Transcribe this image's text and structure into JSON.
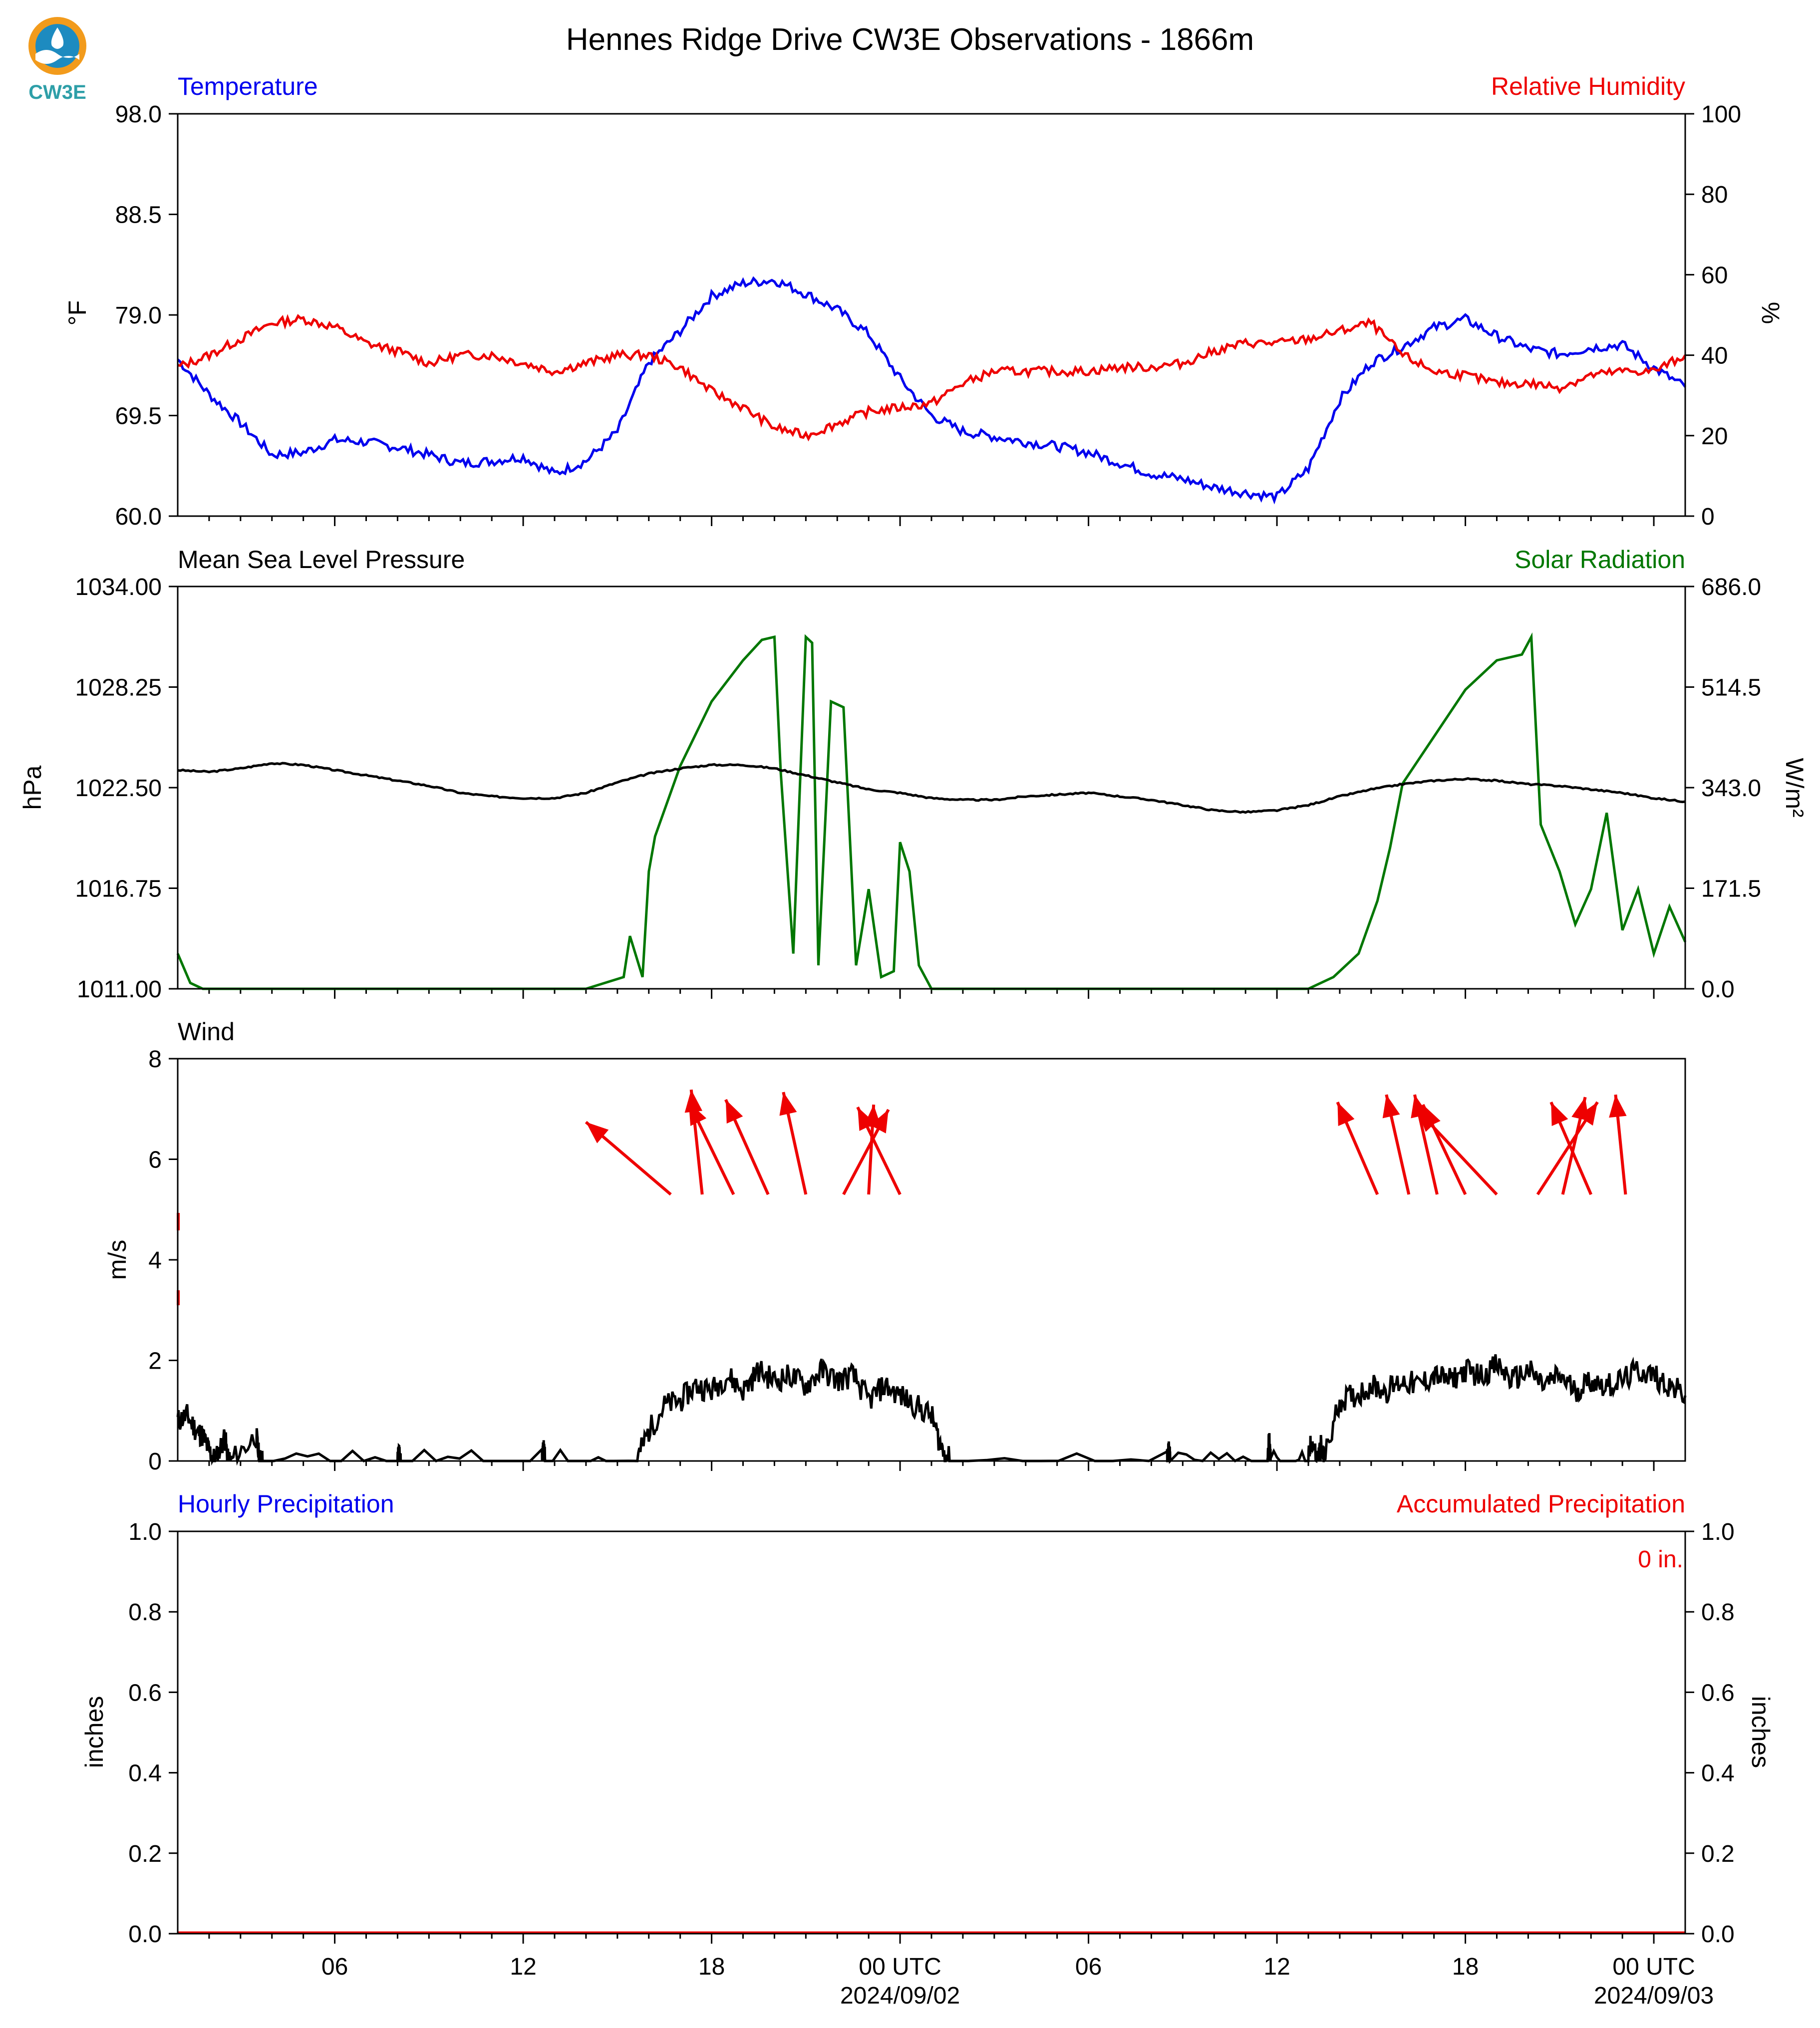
{
  "title": "Hennes Ridge Drive CW3E Observations - 1866m",
  "logo": {
    "text": "CW3E",
    "colors": [
      "#f29b1c",
      "#1d8bc0",
      "#2e9fa8"
    ]
  },
  "x_axis": {
    "hours_range": [
      0,
      48
    ],
    "ticks": [
      {
        "h": 5,
        "label": "06",
        "date": ""
      },
      {
        "h": 11,
        "label": "12",
        "date": ""
      },
      {
        "h": 17,
        "label": "18",
        "date": ""
      },
      {
        "h": 23,
        "label": "00 UTC",
        "date": "2024/09/02"
      },
      {
        "h": 29,
        "label": "06",
        "date": ""
      },
      {
        "h": 35,
        "label": "12",
        "date": ""
      },
      {
        "h": 41,
        "label": "18",
        "date": ""
      },
      {
        "h": 47,
        "label": "00 UTC",
        "date": "2024/09/03"
      }
    ]
  },
  "chart_data": [
    {
      "type": "line",
      "panel": "temp_rh",
      "title_left": "Temperature",
      "title_right": "Relative Humidity",
      "ylabel_left": "°F",
      "ylabel_right": "%",
      "ylim_left": [
        60.0,
        98.0
      ],
      "ylim_right": [
        0,
        100
      ],
      "yticks_left": [
        "60.0",
        "69.5",
        "79.0",
        "88.5",
        "98.0"
      ],
      "yticks_right": [
        "0",
        "20",
        "40",
        "60",
        "80",
        "100"
      ],
      "x_hours": [
        0,
        1,
        2,
        3,
        4,
        5,
        6,
        7,
        8,
        9,
        10,
        11,
        12,
        13,
        14,
        15,
        16,
        17,
        18,
        19,
        20,
        21,
        22,
        23,
        24,
        25,
        26,
        27,
        28,
        29,
        30,
        31,
        32,
        33,
        34,
        35,
        36,
        37,
        38,
        39,
        40,
        41,
        42,
        43,
        44,
        45,
        46,
        47,
        48
      ],
      "series": [
        {
          "name": "Temperature",
          "axis": "left",
          "color": "#0000ee",
          "values": [
            74.8,
            71.5,
            68.8,
            65.8,
            66.0,
            67.2,
            67.0,
            66.5,
            65.8,
            65.0,
            65.2,
            65.6,
            64.0,
            65.2,
            68.0,
            74.5,
            77.5,
            80.8,
            82.0,
            82.3,
            81.0,
            79.5,
            77.2,
            73.0,
            69.5,
            68.0,
            67.5,
            67.0,
            66.6,
            66.0,
            65.0,
            64.0,
            63.5,
            62.7,
            62.2,
            61.8,
            64.5,
            71.0,
            74.5,
            76.0,
            77.8,
            78.6,
            77.0,
            75.8,
            75.3,
            75.9,
            76.2,
            74.0,
            72.2
          ]
        },
        {
          "name": "Relative Humidity",
          "axis": "right",
          "color": "#ee0000",
          "values": [
            37,
            40,
            44,
            48,
            49,
            47,
            43,
            41,
            38,
            40,
            40,
            38,
            36,
            38,
            40,
            40,
            37,
            31,
            27,
            22,
            20,
            23,
            26,
            27,
            28,
            33,
            36,
            36,
            36,
            36,
            37,
            37,
            38,
            41,
            43,
            43,
            44,
            46,
            48,
            40,
            36,
            35,
            33,
            33,
            32,
            35,
            36,
            36,
            40
          ]
        }
      ]
    },
    {
      "type": "line",
      "panel": "pressure_solar",
      "title_left": "Mean Sea Level Pressure",
      "title_right": "Solar Radiation",
      "ylabel_left": "hPa",
      "ylabel_right": "W/m²",
      "ylim_left": [
        1011.0,
        1034.0
      ],
      "ylim_right": [
        0.0,
        686.0
      ],
      "yticks_left": [
        "1011.00",
        "1016.75",
        "1022.50",
        "1028.25",
        "1034.00"
      ],
      "yticks_right": [
        "0.0",
        "171.5",
        "343.0",
        "514.5",
        "686.0"
      ],
      "series": [
        {
          "name": "Mean Sea Level Pressure",
          "axis": "left",
          "color": "#000000",
          "x_hours": [
            0,
            1,
            2,
            3,
            4,
            5,
            6,
            7,
            8,
            9,
            10,
            11,
            12,
            13,
            14,
            15,
            16,
            17,
            18,
            19,
            20,
            21,
            22,
            23,
            24,
            25,
            26,
            27,
            28,
            29,
            30,
            31,
            32,
            33,
            34,
            35,
            36,
            37,
            38,
            39,
            40,
            41,
            42,
            43,
            44,
            45,
            46,
            47,
            48
          ],
          "values": [
            1023.5,
            1023.4,
            1023.6,
            1023.9,
            1023.8,
            1023.5,
            1023.2,
            1022.9,
            1022.6,
            1022.2,
            1022.0,
            1021.9,
            1021.9,
            1022.2,
            1022.8,
            1023.3,
            1023.6,
            1023.8,
            1023.8,
            1023.6,
            1023.2,
            1022.8,
            1022.4,
            1022.2,
            1021.9,
            1021.8,
            1021.8,
            1022.0,
            1022.1,
            1022.2,
            1022.0,
            1021.8,
            1021.5,
            1021.2,
            1021.1,
            1021.2,
            1021.5,
            1022.0,
            1022.4,
            1022.7,
            1022.9,
            1023.0,
            1022.9,
            1022.7,
            1022.6,
            1022.4,
            1022.2,
            1021.9,
            1021.7
          ]
        },
        {
          "name": "Solar Radiation",
          "axis": "right",
          "color": "#007700",
          "x_hours": [
            0,
            0.4,
            0.8,
            4,
            8,
            12,
            13.0,
            14.2,
            14.4,
            14.8,
            15.0,
            15.2,
            16,
            17,
            18,
            18.6,
            19.0,
            19.2,
            19.6,
            20.0,
            20.2,
            20.4,
            20.8,
            21.2,
            21.6,
            22.0,
            22.4,
            22.8,
            23.0,
            23.3,
            23.6,
            24.0,
            24.2,
            24.6,
            28,
            32,
            36,
            36.8,
            37.6,
            38.2,
            38.6,
            39,
            40,
            41,
            42,
            42.8,
            43.1,
            43.4,
            44,
            44.5,
            45,
            45.5,
            46,
            46.5,
            47,
            47.5,
            48
          ],
          "values": [
            60,
            10,
            0,
            0,
            0,
            0,
            0,
            20,
            90,
            20,
            200,
            260,
            380,
            490,
            560,
            595,
            600,
            370,
            60,
            600,
            590,
            40,
            490,
            480,
            40,
            170,
            20,
            30,
            250,
            200,
            40,
            0,
            0,
            0,
            0,
            0,
            0,
            20,
            60,
            150,
            240,
            350,
            430,
            510,
            560,
            570,
            600,
            280,
            200,
            110,
            170,
            300,
            100,
            170,
            60,
            140,
            80
          ]
        }
      ]
    },
    {
      "type": "line",
      "panel": "wind",
      "title_left": "Wind",
      "ylabel_left": "m/s",
      "ylim_left": [
        0,
        8
      ],
      "yticks_left": [
        "0",
        "2",
        "4",
        "6",
        "8"
      ],
      "series": [
        {
          "name": "Wind Speed",
          "axis": "left",
          "color": "#000000",
          "x_hours": [
            0,
            0.3,
            0.6,
            0.8,
            1.0,
            1.2,
            1.5,
            1.6,
            1.7,
            2.5,
            2.6,
            2.7,
            7,
            7.05,
            7.1,
            11.6,
            11.65,
            11.7,
            14.6,
            15,
            15.5,
            16,
            16.5,
            17,
            17.5,
            18,
            18.5,
            19,
            19.5,
            20,
            20.5,
            21,
            21.5,
            22,
            22.5,
            23,
            23.5,
            24,
            24.3,
            24.6,
            31.5,
            31.55,
            31.6,
            34.7,
            34.75,
            34.8,
            36.0,
            36.1,
            36.3,
            36.4,
            36.5,
            37,
            37.5,
            38,
            38.5,
            39,
            39.5,
            40,
            40.5,
            41,
            41.5,
            42,
            42.5,
            43,
            43.5,
            44,
            44.5,
            45,
            45.5,
            46,
            46.5,
            47,
            47.5,
            48
          ],
          "values": [
            0.8,
            0.9,
            0.6,
            0.5,
            0.2,
            0.0,
            0.5,
            0.0,
            0.0,
            0.5,
            0.0,
            0.0,
            0.0,
            0.2,
            0.0,
            0.0,
            0.2,
            0.0,
            0.0,
            0.6,
            1.1,
            1.2,
            1.5,
            1.4,
            1.7,
            1.4,
            1.8,
            1.6,
            1.7,
            1.5,
            1.8,
            1.6,
            1.7,
            1.2,
            1.5,
            1.3,
            1.1,
            0.9,
            0.3,
            0.0,
            0.0,
            0.2,
            0.0,
            0.0,
            0.4,
            0.0,
            0.0,
            0.4,
            0.0,
            0.3,
            0.0,
            1.2,
            1.3,
            1.5,
            1.4,
            1.6,
            1.5,
            1.7,
            1.6,
            1.8,
            1.7,
            1.9,
            1.6,
            1.8,
            1.5,
            1.7,
            1.4,
            1.6,
            1.5,
            1.6,
            1.8,
            1.7,
            1.5,
            1.3
          ]
        },
        {
          "name": "Wind Direction Arrows",
          "axis": "left",
          "color": "#ee0000",
          "arrows": [
            {
              "h": 15.7,
              "dx": -1.7,
              "dy": 1.45
            },
            {
              "h": 16.7,
              "dx": -0.22,
              "dy": 2.1
            },
            {
              "h": 17.7,
              "dx": -0.9,
              "dy": 1.85
            },
            {
              "h": 18.8,
              "dx": -0.85,
              "dy": 1.9
            },
            {
              "h": 20.0,
              "dx": -0.45,
              "dy": 2.05
            },
            {
              "h": 21.2,
              "dx": 0.9,
              "dy": 1.7
            },
            {
              "h": 22.0,
              "dx": 0.1,
              "dy": 1.8
            },
            {
              "h": 23.0,
              "dx": -0.85,
              "dy": 1.75
            },
            {
              "h": 38.2,
              "dx": -0.8,
              "dy": 1.85
            },
            {
              "h": 39.2,
              "dx": -0.45,
              "dy": 2.0
            },
            {
              "h": 40.1,
              "dx": -0.45,
              "dy": 2.0
            },
            {
              "h": 41.0,
              "dx": -0.85,
              "dy": 1.8
            },
            {
              "h": 42.0,
              "dx": -1.6,
              "dy": 1.7
            },
            {
              "h": 43.3,
              "dx": 1.2,
              "dy": 1.85
            },
            {
              "h": 44.1,
              "dx": 0.45,
              "dy": 1.95
            },
            {
              "h": 45.0,
              "dx": -0.8,
              "dy": 1.85
            },
            {
              "h": 46.1,
              "dx": -0.2,
              "dy": 2.0
            }
          ]
        }
      ]
    },
    {
      "type": "bar",
      "panel": "precip",
      "title_left": "Hourly Precipitation",
      "title_right": "Accumulated Precipitation",
      "ylabel_left": "inches",
      "ylabel_right": "inches",
      "ylim_left": [
        0,
        1.0
      ],
      "ylim_right": [
        0,
        1.0
      ],
      "yticks_left": [
        "0.0",
        "0.2",
        "0.4",
        "0.6",
        "0.8",
        "1.0"
      ],
      "yticks_right": [
        "0.0",
        "0.2",
        "0.4",
        "0.6",
        "0.8",
        "1.0"
      ],
      "accumulated_label": "0 in.",
      "series": [
        {
          "name": "Hourly Precipitation",
          "axis": "left",
          "color": "#0000ee",
          "values": []
        },
        {
          "name": "Accumulated Precipitation",
          "axis": "right",
          "color": "#ee0000",
          "values": [
            0,
            0
          ]
        }
      ]
    }
  ]
}
